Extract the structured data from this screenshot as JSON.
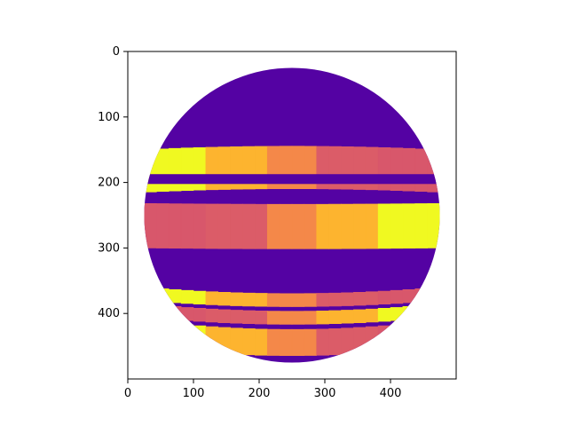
{
  "chart_data": {
    "type": "heatmap",
    "title": "",
    "xlabel": "",
    "ylabel": "",
    "xlim": [
      0,
      500
    ],
    "ylim": [
      500,
      0
    ],
    "x_ticks": [
      0,
      100,
      200,
      300,
      400
    ],
    "y_ticks": [
      0,
      100,
      200,
      300,
      400
    ],
    "x_tick_labels": [
      "0",
      "100",
      "200",
      "300",
      "400"
    ],
    "y_tick_labels": [
      "0",
      "100",
      "200",
      "300",
      "400"
    ],
    "colormap": "plasma",
    "background_color": "#5402a3",
    "sphere": {
      "center": [
        250,
        250
      ],
      "radius": 225
    },
    "bands": [
      {
        "y_top": 150,
        "y_bottom": 215,
        "y_gap_top": 190,
        "y_gap_bottom": 205
      },
      {
        "y_top": 232,
        "y_bottom": 300
      },
      {
        "y_top": 360,
        "y_bottom": 380
      },
      {
        "y_top": 385,
        "y_bottom": 405
      },
      {
        "y_top": 410,
        "y_bottom": 450
      }
    ],
    "band_colors": [
      "#f0f921",
      "#fdb42f",
      "#f48849",
      "#db5c68",
      "#d8576b"
    ]
  }
}
